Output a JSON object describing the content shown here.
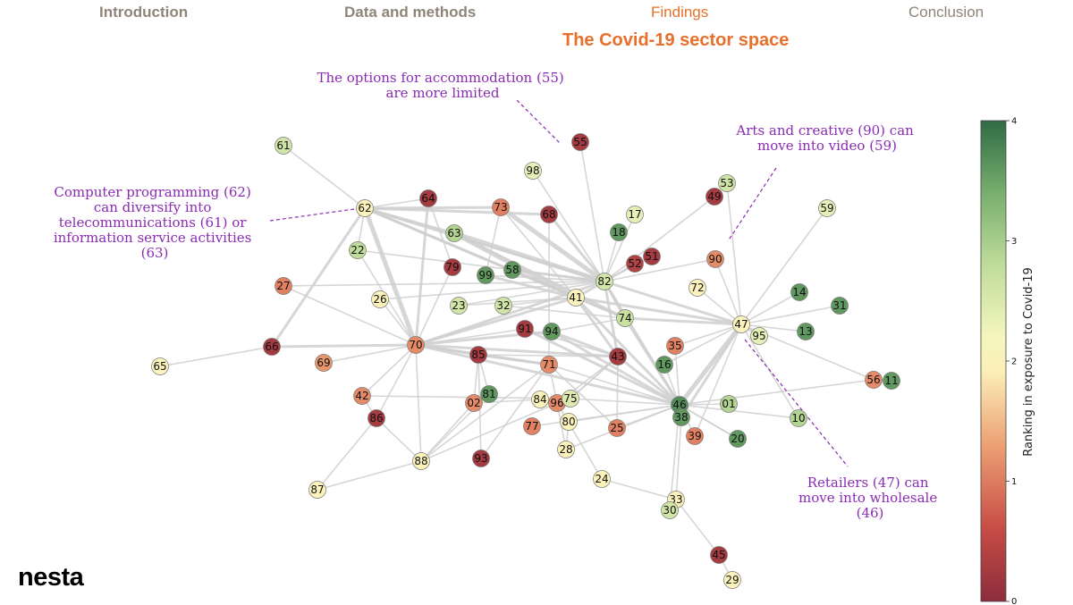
{
  "nav": {
    "items": [
      "Introduction",
      "Data and methods",
      "Findings",
      "Conclusion"
    ],
    "active": "Findings"
  },
  "title": "The Covid-19 sector space",
  "logo": "nesta",
  "colors": {
    "accent": "#e8702a",
    "annotation": "#8a2bb3",
    "nav_inactive": "#8f8577"
  },
  "annotations": [
    {
      "id": "accommodation",
      "lines": [
        "The options for accommodation (55)",
        "are more limited"
      ]
    },
    {
      "id": "arts",
      "lines": [
        "Arts and creative (90) can",
        "move into video (59)"
      ]
    },
    {
      "id": "computer",
      "lines": [
        "Computer programming (62)",
        "can diversify into",
        "telecommunications (61) or",
        "information service activities",
        "(63)"
      ]
    },
    {
      "id": "retail",
      "lines": [
        "Retailers (47)  can",
        "move into wholesale",
        "(46)"
      ]
    }
  ],
  "colorbar": {
    "label": "Ranking in exposure to Covid-19",
    "ticks": [
      "0",
      "1",
      "2",
      "3",
      "4"
    ],
    "min": 0,
    "max": 4,
    "stops": [
      "#8b2d3c",
      "#d4574a",
      "#eb9e72",
      "#fcefb8",
      "#f9f8c5",
      "#bfdc9a",
      "#78ae6e",
      "#2f6b45"
    ]
  },
  "nodes": [
    {
      "id": "61",
      "v": 2.6
    },
    {
      "id": "55",
      "v": 0.2
    },
    {
      "id": "98",
      "v": 2.4
    },
    {
      "id": "53",
      "v": 2.6
    },
    {
      "id": "49",
      "v": 0.2
    },
    {
      "id": "64",
      "v": 0.2
    },
    {
      "id": "62",
      "v": 2.0
    },
    {
      "id": "73",
      "v": 1.0
    },
    {
      "id": "68",
      "v": 0.2
    },
    {
      "id": "17",
      "v": 2.4
    },
    {
      "id": "59",
      "v": 2.4
    },
    {
      "id": "18",
      "v": 3.6
    },
    {
      "id": "63",
      "v": 2.9
    },
    {
      "id": "22",
      "v": 2.8
    },
    {
      "id": "51",
      "v": 0.2
    },
    {
      "id": "52",
      "v": 0.3
    },
    {
      "id": "90",
      "v": 1.1
    },
    {
      "id": "79",
      "v": 0.2
    },
    {
      "id": "99",
      "v": 3.6
    },
    {
      "id": "58",
      "v": 3.6
    },
    {
      "id": "82",
      "v": 2.6
    },
    {
      "id": "27",
      "v": 1.0
    },
    {
      "id": "26",
      "v": 2.0
    },
    {
      "id": "72",
      "v": 2.0
    },
    {
      "id": "14",
      "v": 3.6
    },
    {
      "id": "41",
      "v": 2.0
    },
    {
      "id": "31",
      "v": 3.6
    },
    {
      "id": "23",
      "v": 2.6
    },
    {
      "id": "32",
      "v": 2.6
    },
    {
      "id": "74",
      "v": 2.7
    },
    {
      "id": "47",
      "v": 2.0
    },
    {
      "id": "95",
      "v": 2.4
    },
    {
      "id": "13",
      "v": 3.6
    },
    {
      "id": "91",
      "v": 0.2
    },
    {
      "id": "94",
      "v": 3.6
    },
    {
      "id": "66",
      "v": 0.2
    },
    {
      "id": "70",
      "v": 1.1
    },
    {
      "id": "85",
      "v": 0.2
    },
    {
      "id": "35",
      "v": 1.0
    },
    {
      "id": "43",
      "v": 0.2
    },
    {
      "id": "71",
      "v": 1.1
    },
    {
      "id": "16",
      "v": 3.6
    },
    {
      "id": "65",
      "v": 2.0
    },
    {
      "id": "69",
      "v": 1.2
    },
    {
      "id": "56",
      "v": 1.1
    },
    {
      "id": "11",
      "v": 3.6
    },
    {
      "id": "42",
      "v": 1.1
    },
    {
      "id": "81",
      "v": 3.6
    },
    {
      "id": "84",
      "v": 2.0
    },
    {
      "id": "96",
      "v": 1.1
    },
    {
      "id": "75",
      "v": 2.5
    },
    {
      "id": "46",
      "v": 3.7
    },
    {
      "id": "01",
      "v": 2.9
    },
    {
      "id": "86",
      "v": 0.2
    },
    {
      "id": "02",
      "v": 1.1
    },
    {
      "id": "38",
      "v": 3.6
    },
    {
      "id": "10",
      "v": 2.9
    },
    {
      "id": "80",
      "v": 2.0
    },
    {
      "id": "77",
      "v": 1.0
    },
    {
      "id": "25",
      "v": 1.0
    },
    {
      "id": "39",
      "v": 1.0
    },
    {
      "id": "20",
      "v": 3.6
    },
    {
      "id": "28",
      "v": 2.0
    },
    {
      "id": "88",
      "v": 2.0
    },
    {
      "id": "93",
      "v": 0.2
    },
    {
      "id": "24",
      "v": 2.0
    },
    {
      "id": "87",
      "v": 2.0
    },
    {
      "id": "33",
      "v": 2.0
    },
    {
      "id": "30",
      "v": 2.6
    },
    {
      "id": "45",
      "v": 0.2
    },
    {
      "id": "29",
      "v": 2.0
    }
  ],
  "edges": [
    [
      "61",
      "62",
      1
    ],
    [
      "62",
      "64",
      1
    ],
    [
      "62",
      "73",
      2
    ],
    [
      "62",
      "68",
      2
    ],
    [
      "62",
      "63",
      2
    ],
    [
      "62",
      "22",
      1
    ],
    [
      "62",
      "70",
      3
    ],
    [
      "62",
      "66",
      2
    ],
    [
      "62",
      "82",
      2
    ],
    [
      "62",
      "41",
      2
    ],
    [
      "64",
      "70",
      2
    ],
    [
      "64",
      "79",
      1
    ],
    [
      "73",
      "82",
      3
    ],
    [
      "73",
      "99",
      1
    ],
    [
      "73",
      "41",
      1
    ],
    [
      "68",
      "82",
      2
    ],
    [
      "68",
      "71",
      1
    ],
    [
      "63",
      "82",
      3
    ],
    [
      "63",
      "41",
      3
    ],
    [
      "63",
      "74",
      2
    ],
    [
      "55",
      "82",
      1
    ],
    [
      "98",
      "82",
      1
    ],
    [
      "49",
      "82",
      1
    ],
    [
      "53",
      "47",
      1
    ],
    [
      "59",
      "47",
      1
    ],
    [
      "17",
      "82",
      1
    ],
    [
      "18",
      "82",
      1
    ],
    [
      "51",
      "82",
      1
    ],
    [
      "52",
      "82",
      1
    ],
    [
      "90",
      "82",
      1
    ],
    [
      "90",
      "47",
      1
    ],
    [
      "79",
      "70",
      1
    ],
    [
      "99",
      "41",
      2
    ],
    [
      "58",
      "41",
      2
    ],
    [
      "58",
      "82",
      2
    ],
    [
      "82",
      "41",
      2
    ],
    [
      "82",
      "74",
      2
    ],
    [
      "82",
      "47",
      2
    ],
    [
      "82",
      "43",
      2
    ],
    [
      "82",
      "70",
      2
    ],
    [
      "82",
      "46",
      2
    ],
    [
      "72",
      "47",
      1
    ],
    [
      "14",
      "47",
      1
    ],
    [
      "31",
      "47",
      1
    ],
    [
      "13",
      "47",
      1
    ],
    [
      "95",
      "47",
      2
    ],
    [
      "47",
      "46",
      3
    ],
    [
      "47",
      "74",
      2
    ],
    [
      "47",
      "38",
      2
    ],
    [
      "47",
      "16",
      1
    ],
    [
      "47",
      "10",
      1
    ],
    [
      "47",
      "41",
      2
    ],
    [
      "47",
      "35",
      1
    ],
    [
      "41",
      "46",
      2
    ],
    [
      "41",
      "70",
      2
    ],
    [
      "41",
      "74",
      1
    ],
    [
      "23",
      "41",
      1
    ],
    [
      "32",
      "41",
      1
    ],
    [
      "32",
      "74",
      1
    ],
    [
      "74",
      "46",
      2
    ],
    [
      "74",
      "94",
      1
    ],
    [
      "91",
      "70",
      1
    ],
    [
      "94",
      "70",
      2
    ],
    [
      "91",
      "46",
      2
    ],
    [
      "94",
      "46",
      2
    ],
    [
      "70",
      "66",
      2
    ],
    [
      "70",
      "26",
      1
    ],
    [
      "70",
      "27",
      1
    ],
    [
      "70",
      "85",
      2
    ],
    [
      "70",
      "88",
      1
    ],
    [
      "70",
      "71",
      2
    ],
    [
      "70",
      "43",
      2
    ],
    [
      "70",
      "46",
      2
    ],
    [
      "70",
      "22",
      1
    ],
    [
      "85",
      "71",
      2
    ],
    [
      "85",
      "43",
      1
    ],
    [
      "85",
      "81",
      1
    ],
    [
      "35",
      "46",
      1
    ],
    [
      "43",
      "46",
      2
    ],
    [
      "43",
      "25",
      1
    ],
    [
      "43",
      "96",
      1
    ],
    [
      "43",
      "75",
      1
    ],
    [
      "71",
      "96",
      1
    ],
    [
      "71",
      "46",
      1
    ],
    [
      "71",
      "25",
      1
    ],
    [
      "16",
      "46",
      1
    ],
    [
      "65",
      "66",
      1
    ],
    [
      "69",
      "70",
      1
    ],
    [
      "56",
      "11",
      2
    ],
    [
      "56",
      "46",
      1
    ],
    [
      "56",
      "47",
      1
    ],
    [
      "42",
      "75",
      1
    ],
    [
      "42",
      "70",
      1
    ],
    [
      "81",
      "88",
      1
    ],
    [
      "81",
      "02",
      1
    ],
    [
      "84",
      "96",
      1
    ],
    [
      "84",
      "02",
      1
    ],
    [
      "96",
      "75",
      1
    ],
    [
      "96",
      "88",
      1
    ],
    [
      "96",
      "28",
      1
    ],
    [
      "75",
      "46",
      1
    ],
    [
      "75",
      "43",
      1
    ],
    [
      "46",
      "38",
      3
    ],
    [
      "46",
      "01",
      1
    ],
    [
      "46",
      "10",
      1
    ],
    [
      "46",
      "25",
      1
    ],
    [
      "46",
      "39",
      1
    ],
    [
      "46",
      "20",
      1
    ],
    [
      "38",
      "33",
      1
    ],
    [
      "86",
      "42",
      1
    ],
    [
      "86",
      "88",
      1
    ],
    [
      "86",
      "70",
      1
    ],
    [
      "86",
      "87",
      1
    ],
    [
      "88",
      "87",
      1
    ],
    [
      "88",
      "02",
      1
    ],
    [
      "88",
      "71",
      1
    ],
    [
      "02",
      "85",
      1
    ],
    [
      "80",
      "46",
      1
    ],
    [
      "80",
      "28",
      1
    ],
    [
      "77",
      "46",
      1
    ],
    [
      "28",
      "46",
      1
    ],
    [
      "93",
      "85",
      1
    ],
    [
      "93",
      "71",
      1
    ],
    [
      "24",
      "33",
      1
    ],
    [
      "24",
      "96",
      1
    ],
    [
      "33",
      "30",
      1
    ],
    [
      "30",
      "46",
      1
    ],
    [
      "33",
      "45",
      1
    ],
    [
      "45",
      "29",
      1
    ],
    [
      "39",
      "47",
      1
    ],
    [
      "20",
      "46",
      1
    ],
    [
      "26",
      "82",
      1
    ],
    [
      "27",
      "82",
      1
    ],
    [
      "23",
      "82",
      1
    ],
    [
      "99",
      "82",
      1
    ],
    [
      "94",
      "43",
      2
    ],
    [
      "91",
      "43",
      1
    ],
    [
      "41",
      "43",
      2
    ],
    [
      "22",
      "82",
      1
    ],
    [
      "62",
      "74",
      2
    ]
  ]
}
